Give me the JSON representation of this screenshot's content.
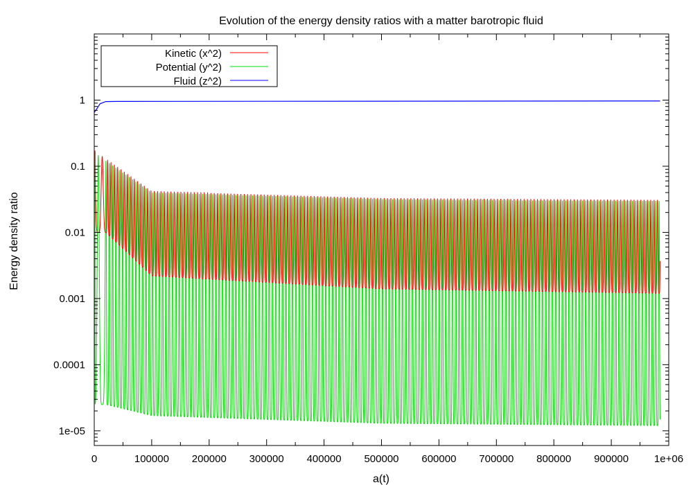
{
  "chart_data": {
    "type": "line",
    "title": "Evolution of the energy density ratios with a matter barotropic fluid",
    "xlabel": "a(t)",
    "ylabel": "Energy density ratio",
    "yscale": "log",
    "xlim": [
      0,
      1000000
    ],
    "ylim": [
      6e-06,
      10
    ],
    "x_ticks": [
      0,
      100000,
      200000,
      300000,
      400000,
      500000,
      600000,
      700000,
      800000,
      900000,
      1000000
    ],
    "x_tick_labels": [
      "0",
      "100000",
      "200000",
      "300000",
      "400000",
      "500000",
      "600000",
      "700000",
      "800000",
      "900000",
      "1e+06"
    ],
    "y_ticks": [
      1e-05,
      0.0001,
      0.001,
      0.01,
      0.1,
      1
    ],
    "y_tick_labels": [
      "1e-05",
      "0.0001",
      "0.001",
      "0.01",
      "0.1",
      "1"
    ],
    "grid": false,
    "legend_position": "top-left",
    "x_max_data": 985000,
    "series": [
      {
        "name": "Kinetic (x^2)",
        "color": "#ff0000",
        "oscillation_period": 5800,
        "start_value": 0.17,
        "envelope_upper": [
          [
            0,
            0.17
          ],
          [
            100000,
            0.042
          ],
          [
            500000,
            0.033
          ],
          [
            985000,
            0.031
          ]
        ],
        "envelope_lower": [
          [
            20000,
            0.01
          ],
          [
            100000,
            0.0022
          ],
          [
            500000,
            0.0014
          ],
          [
            985000,
            0.0012
          ]
        ]
      },
      {
        "name": "Potential (y^2)",
        "color": "#00dd00",
        "oscillation_period": 5800,
        "start_value": 0.16,
        "envelope_upper": [
          [
            0,
            0.16
          ],
          [
            100000,
            0.04
          ],
          [
            500000,
            0.032
          ],
          [
            985000,
            0.03
          ]
        ],
        "envelope_lower": [
          [
            20000,
            2.5e-05
          ],
          [
            100000,
            1.7e-05
          ],
          [
            500000,
            1.3e-05
          ],
          [
            985000,
            1.2e-05
          ]
        ]
      },
      {
        "name": "Fluid (z^2)",
        "color": "#0000ff",
        "start_value": 0.65,
        "points": [
          [
            0,
            0.65
          ],
          [
            5000,
            0.75
          ],
          [
            10000,
            0.88
          ],
          [
            20000,
            0.95
          ],
          [
            40000,
            0.955
          ],
          [
            985000,
            0.97
          ]
        ]
      }
    ]
  }
}
